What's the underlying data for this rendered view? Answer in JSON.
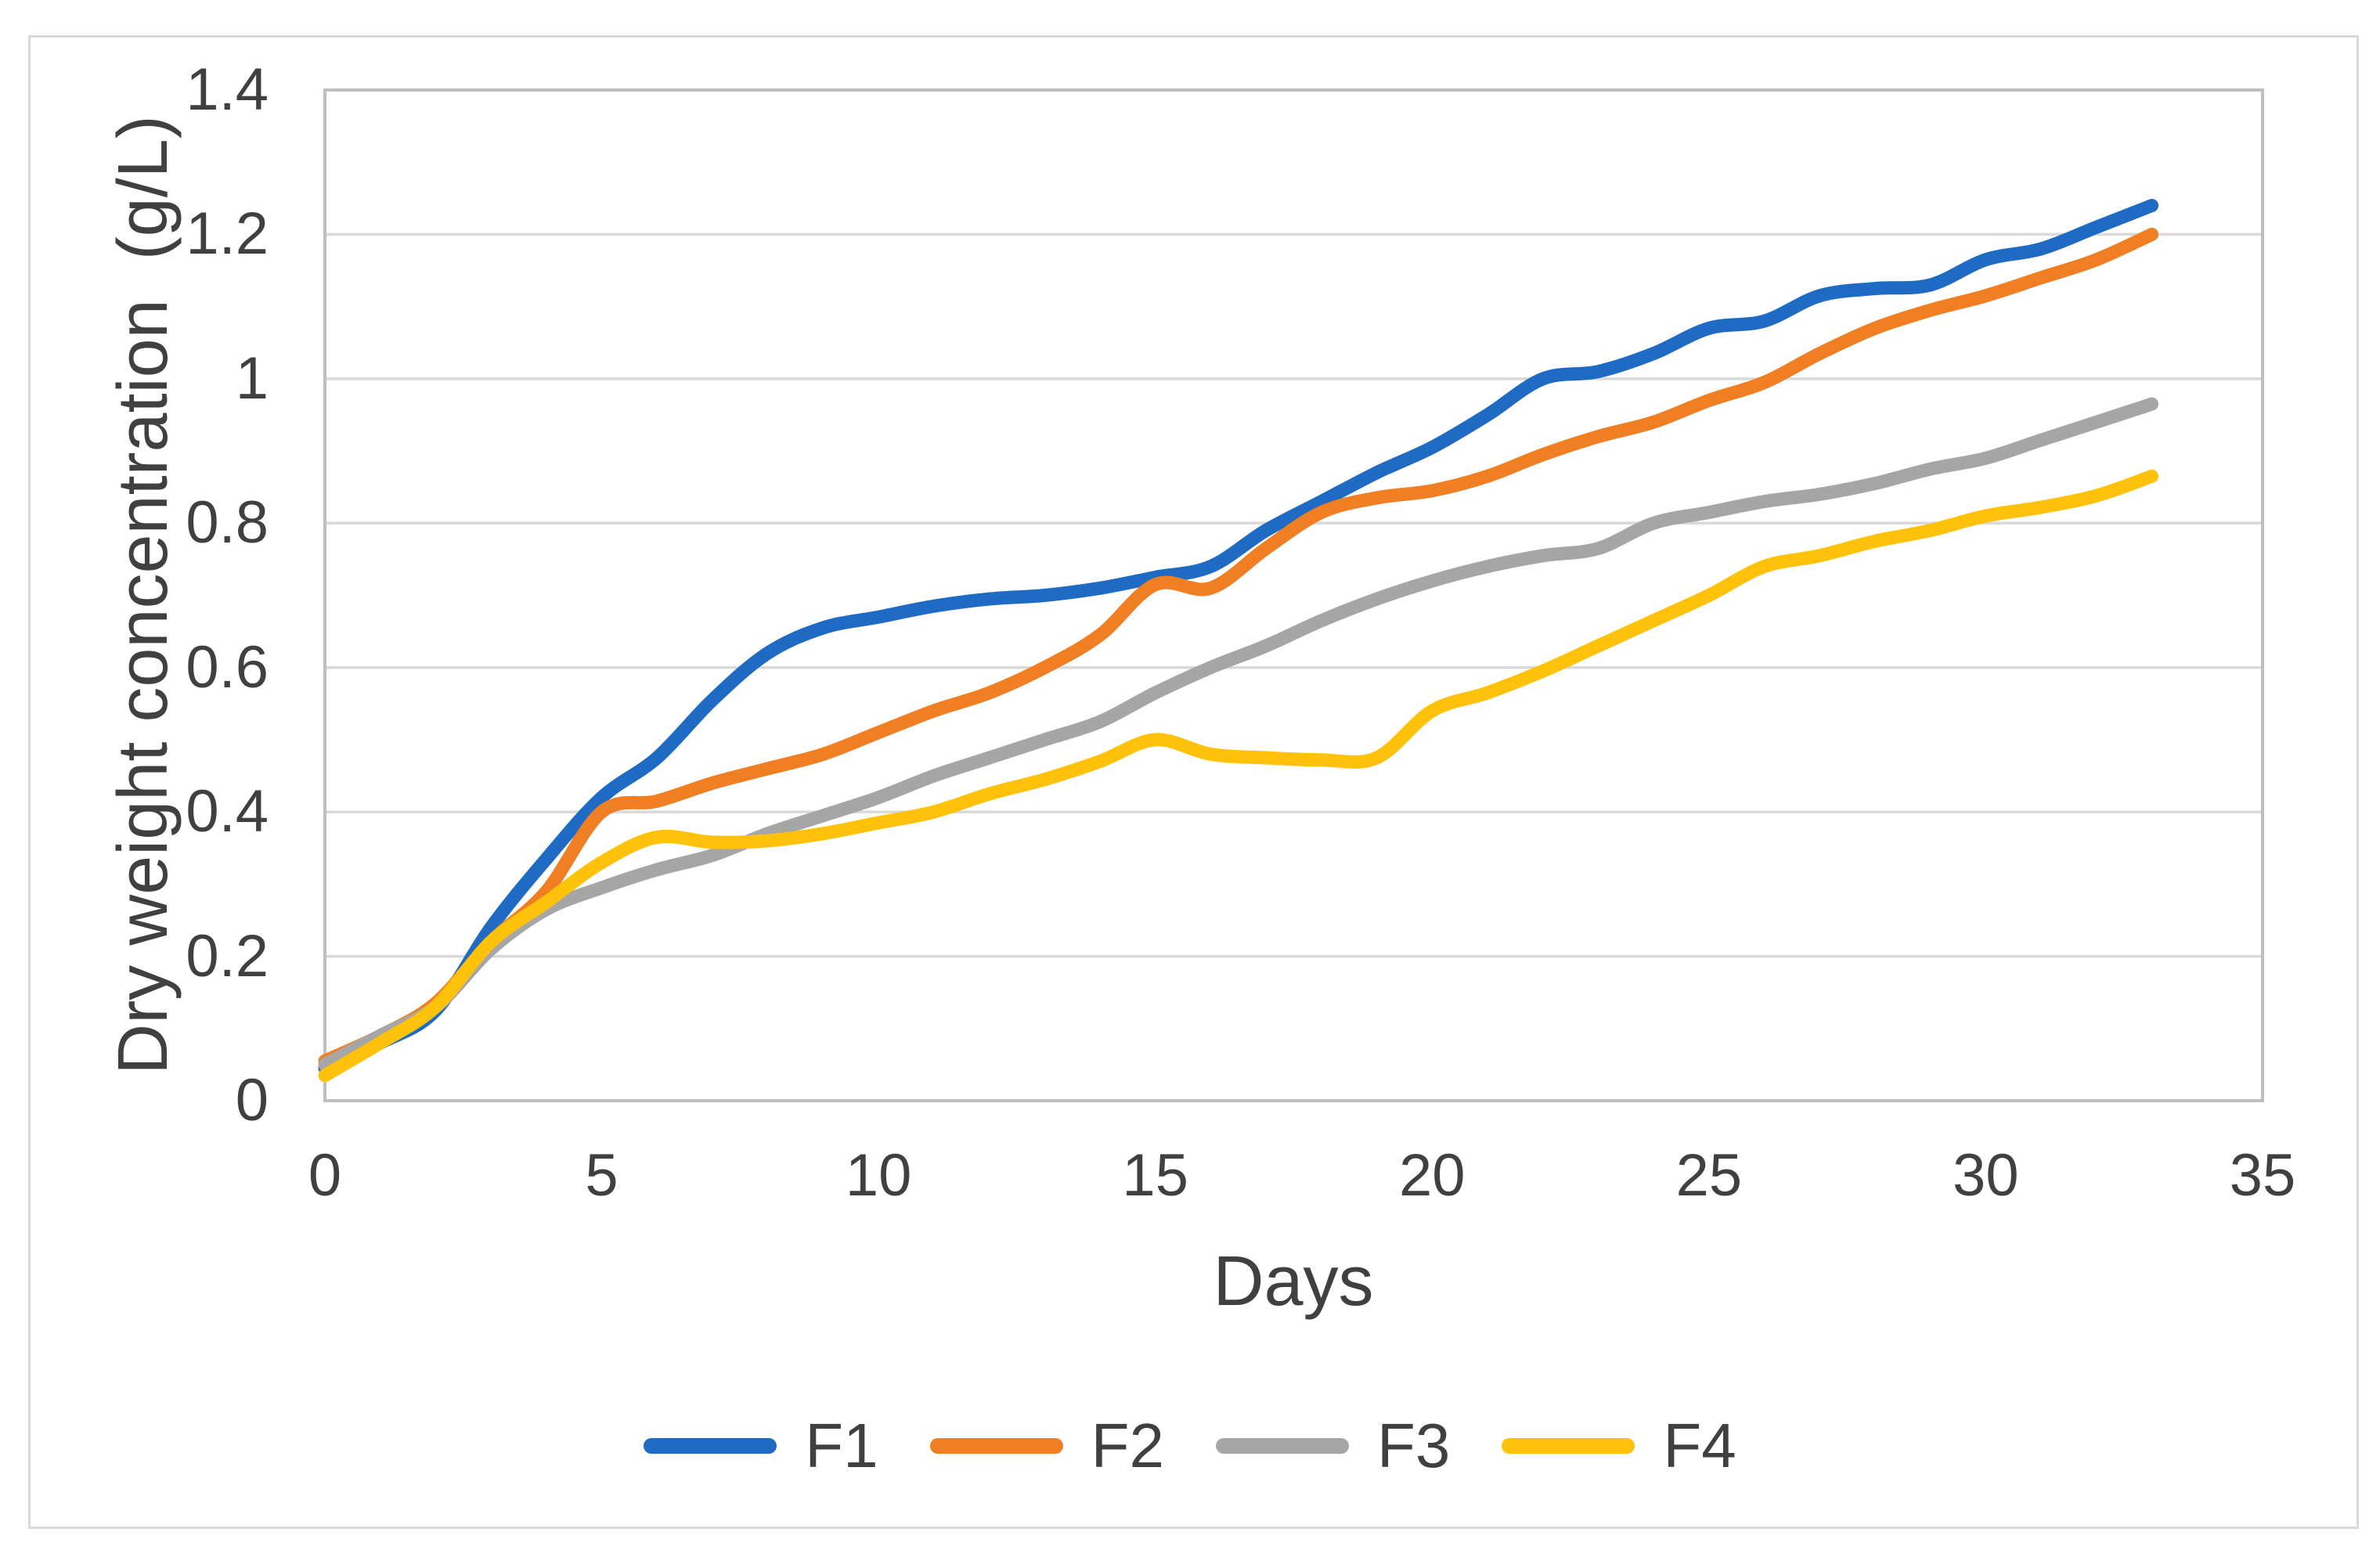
{
  "figure": {
    "background": "#ffffff",
    "outer_border_color": "#d9d9d9"
  },
  "chart_data": {
    "type": "line",
    "title": "",
    "xlabel": "Days",
    "ylabel": "Dry weight concentration  (g/L)",
    "xlim": [
      0,
      35
    ],
    "ylim": [
      0,
      1.4
    ],
    "x_ticks": [
      0,
      5,
      10,
      15,
      20,
      25,
      30,
      35
    ],
    "x_tick_labels": [
      "0",
      "5",
      "10",
      "15",
      "20",
      "25",
      "30",
      "35"
    ],
    "y_ticks": [
      0,
      0.2,
      0.4,
      0.6,
      0.8,
      1.0,
      1.2,
      1.4
    ],
    "y_tick_labels": [
      "0",
      "0.2",
      "0.4",
      "0.6",
      "0.8",
      "1",
      "1.2",
      "1.4"
    ],
    "grid": "horizontal",
    "gridline_color": "#d9d9d9",
    "axis_color": "#bfbfbf",
    "text_color": "#404040",
    "legend_position": "bottom",
    "smooth": true,
    "x": [
      0,
      1,
      2,
      3,
      4,
      5,
      6,
      7,
      8,
      9,
      10,
      11,
      12,
      13,
      14,
      15,
      16,
      17,
      18,
      19,
      20,
      21,
      22,
      23,
      24,
      25,
      26,
      27,
      28,
      29,
      30,
      31,
      32,
      33
    ],
    "series": [
      {
        "name": "F1",
        "color": "#1F6BC4",
        "values": [
          0.045,
          0.08,
          0.125,
          0.24,
          0.335,
          0.42,
          0.475,
          0.555,
          0.62,
          0.655,
          0.67,
          0.685,
          0.695,
          0.7,
          0.71,
          0.725,
          0.74,
          0.79,
          0.83,
          0.87,
          0.905,
          0.95,
          1.0,
          1.01,
          1.035,
          1.07,
          1.08,
          1.115,
          1.125,
          1.13,
          1.165,
          1.18,
          1.21,
          1.24
        ]
      },
      {
        "name": "F2",
        "color": "#F07F24",
        "values": [
          0.055,
          0.09,
          0.135,
          0.22,
          0.29,
          0.4,
          0.415,
          0.44,
          0.46,
          0.48,
          0.51,
          0.54,
          0.565,
          0.6,
          0.645,
          0.715,
          0.71,
          0.765,
          0.815,
          0.835,
          0.845,
          0.865,
          0.895,
          0.92,
          0.94,
          0.97,
          0.995,
          1.035,
          1.07,
          1.095,
          1.115,
          1.14,
          1.165,
          1.2
        ]
      },
      {
        "name": "F3",
        "color": "#A6A6A6",
        "values": [
          0.05,
          0.09,
          0.13,
          0.21,
          0.265,
          0.295,
          0.32,
          0.34,
          0.37,
          0.395,
          0.42,
          0.45,
          0.475,
          0.5,
          0.525,
          0.565,
          0.6,
          0.63,
          0.665,
          0.695,
          0.72,
          0.74,
          0.755,
          0.765,
          0.8,
          0.815,
          0.83,
          0.84,
          0.855,
          0.875,
          0.89,
          0.915,
          0.94,
          0.965
        ]
      },
      {
        "name": "F4",
        "color": "#FFC20A",
        "values": [
          0.035,
          0.08,
          0.13,
          0.22,
          0.275,
          0.33,
          0.365,
          0.358,
          0.36,
          0.37,
          0.385,
          0.4,
          0.425,
          0.445,
          0.47,
          0.5,
          0.48,
          0.475,
          0.472,
          0.475,
          0.54,
          0.565,
          0.595,
          0.63,
          0.665,
          0.7,
          0.74,
          0.755,
          0.775,
          0.79,
          0.81,
          0.822,
          0.838,
          0.865
        ]
      }
    ]
  }
}
